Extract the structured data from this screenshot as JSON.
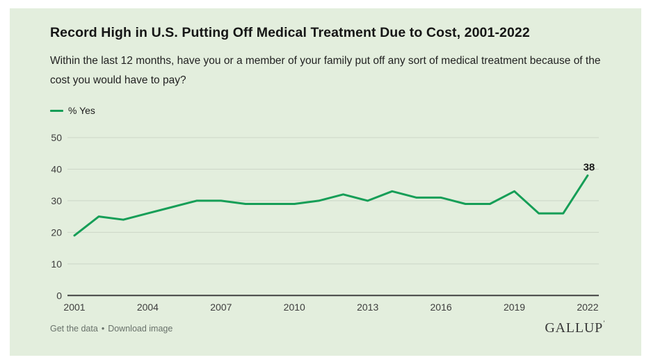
{
  "header": {
    "title": "Record High in U.S. Putting Off Medical Treatment Due to Cost, 2001-2022",
    "subtitle": "Within the last 12 months, have you or a member of your family put off any sort of medical treatment because of the cost you would have to pay?"
  },
  "legend": {
    "label": "% Yes"
  },
  "footer": {
    "get_data_label": "Get the data",
    "separator": "•",
    "download_label": "Download image",
    "brand": "GALLUP",
    "brand_mark": "’"
  },
  "colors": {
    "card_bg": "#e3eedd",
    "line": "#169e57",
    "grid": "#ccd6c7",
    "axis": "#404040",
    "tick_text": "#3d3d3d"
  },
  "chart_data": {
    "type": "line",
    "title": "Record High in U.S. Putting Off Medical Treatment Due to Cost, 2001-2022",
    "xlabel": "",
    "ylabel": "% Yes",
    "x": [
      2001,
      2002,
      2003,
      2004,
      2005,
      2006,
      2007,
      2008,
      2009,
      2010,
      2011,
      2012,
      2013,
      2014,
      2015,
      2016,
      2017,
      2018,
      2019,
      2020,
      2021,
      2022
    ],
    "series": [
      {
        "name": "% Yes",
        "values": [
          19,
          25,
          24,
          26,
          28,
          30,
          30,
          29,
          29,
          29,
          30,
          32,
          30,
          33,
          31,
          31,
          29,
          29,
          33,
          26,
          26,
          38
        ]
      }
    ],
    "x_tick_labels": [
      2001,
      2004,
      2007,
      2010,
      2013,
      2016,
      2019,
      2022
    ],
    "y_ticks": [
      0,
      10,
      20,
      30,
      40,
      50
    ],
    "ylim": [
      0,
      50
    ],
    "grid": "horizontal",
    "legend_position": "top-left",
    "end_label": {
      "year": 2022,
      "value": 38,
      "text": "38"
    }
  }
}
